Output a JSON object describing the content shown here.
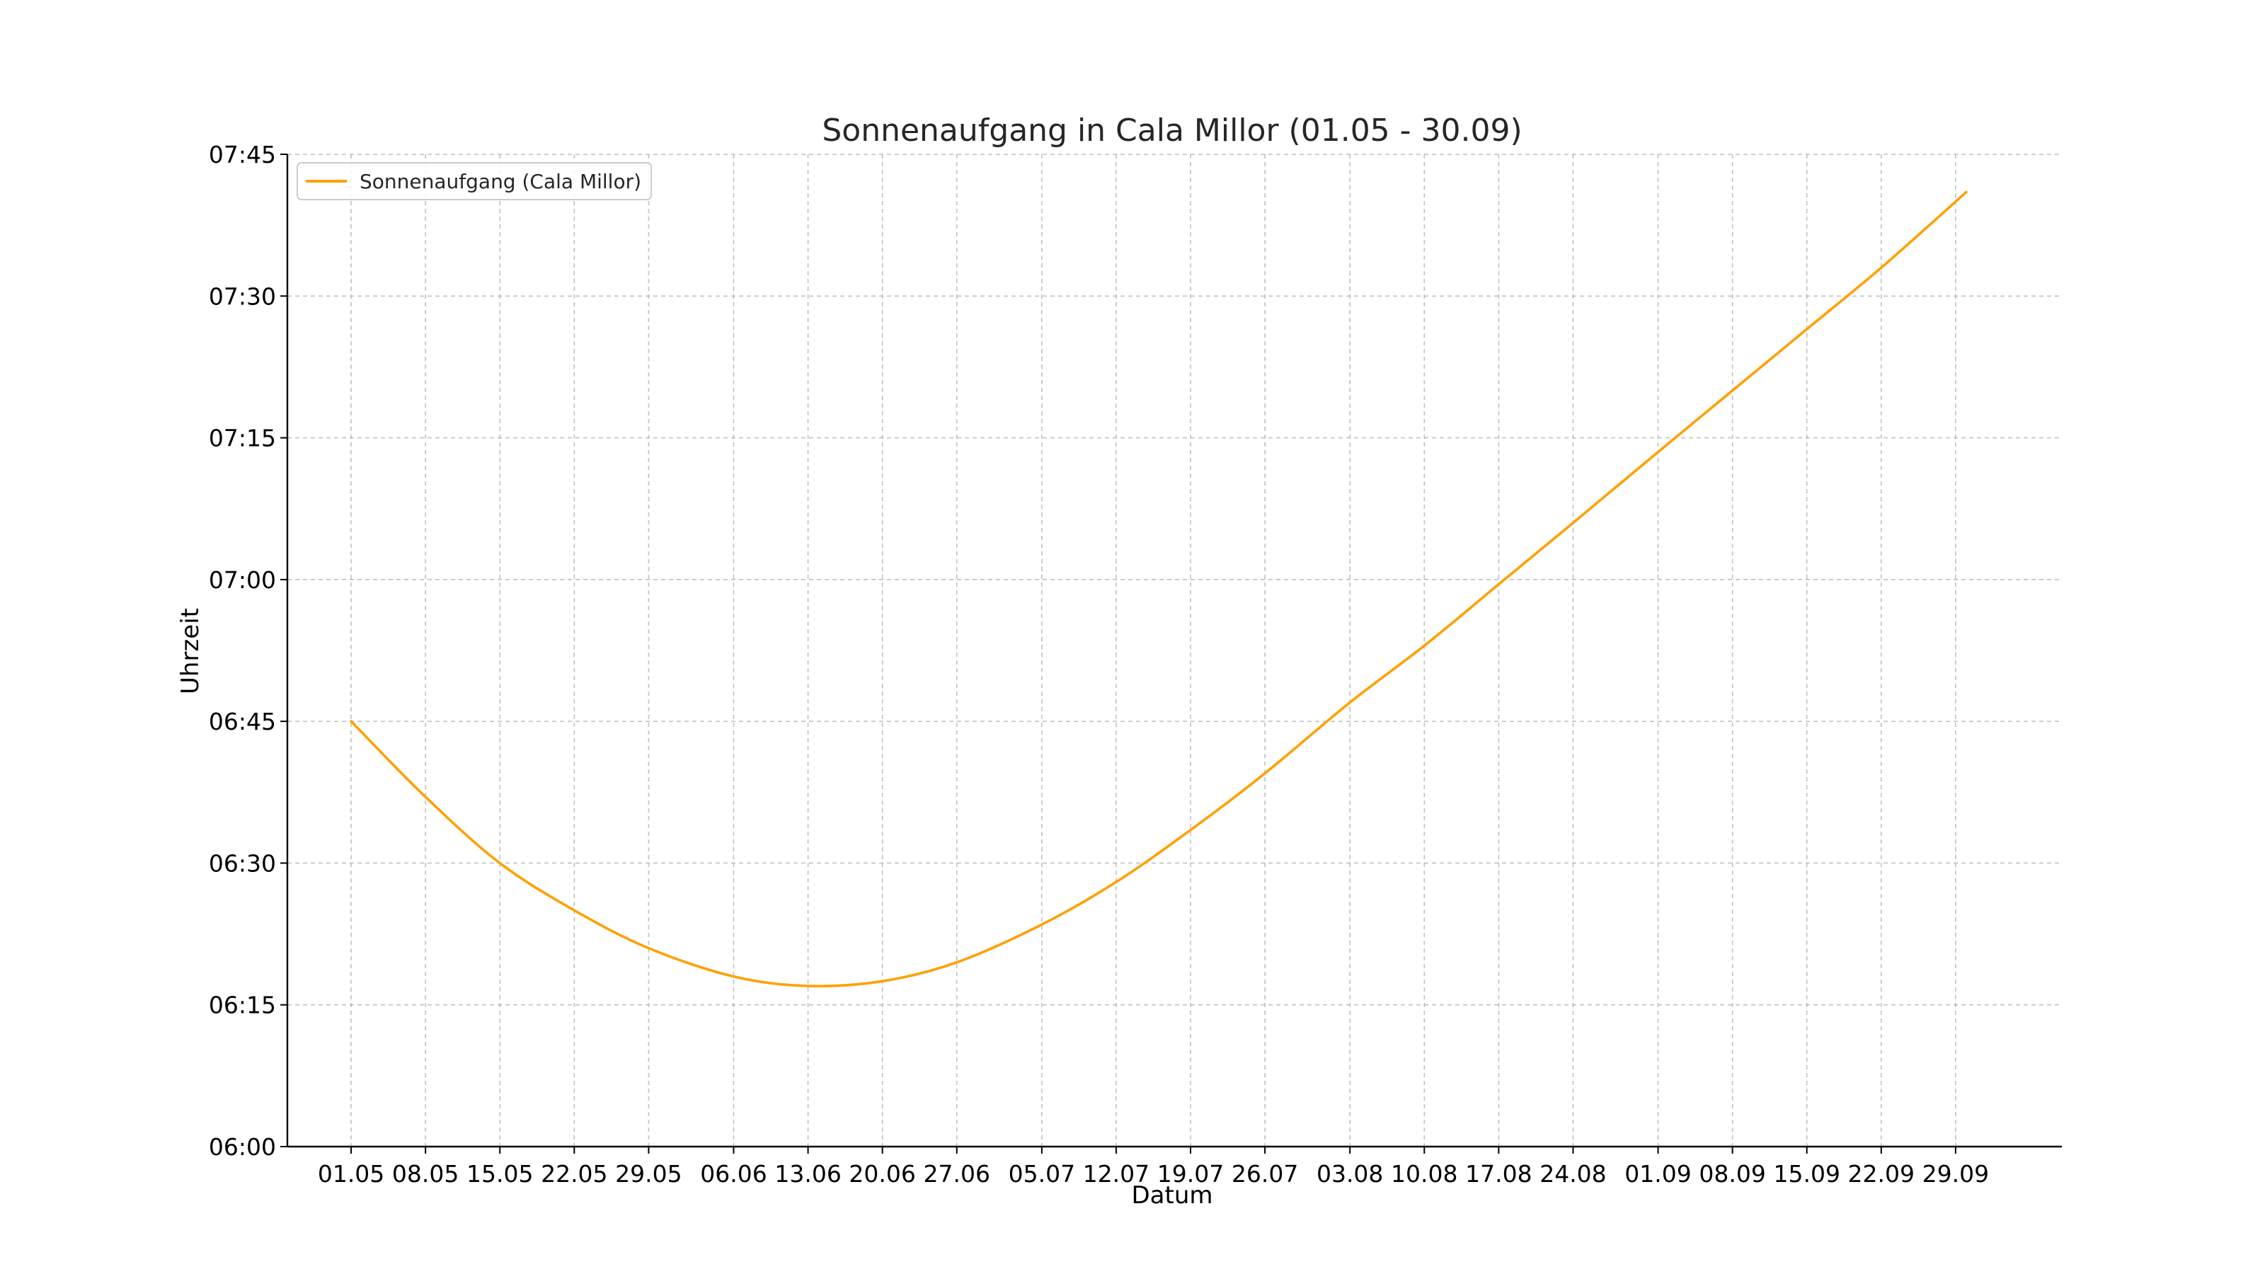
{
  "chart_data": {
    "type": "line",
    "title": "Sonnenaufgang in Cala Millor (01.05 - 30.09)",
    "xlabel": "Datum",
    "ylabel": "Uhrzeit",
    "x_tick_labels": [
      "01.05",
      "08.05",
      "15.05",
      "22.05",
      "29.05",
      "06.06",
      "13.06",
      "20.06",
      "27.06",
      "05.07",
      "12.07",
      "19.07",
      "26.07",
      "03.08",
      "10.08",
      "17.08",
      "24.08",
      "01.09",
      "08.09",
      "15.09",
      "22.09",
      "29.09"
    ],
    "y_tick_labels": [
      "06:00",
      "06:15",
      "06:30",
      "06:45",
      "07:00",
      "07:15",
      "07:30",
      "07:45"
    ],
    "ylim": [
      "06:00",
      "07:45"
    ],
    "xlim": [
      "2024-04-25",
      "2024-10-09"
    ],
    "grid": true,
    "legend_position": "top-left",
    "color": "#ffa000",
    "series": [
      {
        "name": "Sonnenaufgang (Cala Millor)",
        "x": [
          "2024-05-01",
          "2024-05-08",
          "2024-05-15",
          "2024-05-22",
          "2024-05-29",
          "2024-06-06",
          "2024-06-13",
          "2024-06-20",
          "2024-06-27",
          "2024-07-05",
          "2024-07-12",
          "2024-07-19",
          "2024-07-26",
          "2024-08-03",
          "2024-08-10",
          "2024-08-17",
          "2024-08-24",
          "2024-09-01",
          "2024-09-08",
          "2024-09-15",
          "2024-09-22",
          "2024-09-30"
        ],
        "y": [
          "06:45",
          "06:37",
          "06:30",
          "06:25",
          "06:21",
          "06:18",
          "06:17",
          "06:17.5",
          "06:19.5",
          "06:23.5",
          "06:28",
          "06:33.5",
          "06:39.5",
          "06:47",
          "06:53",
          "06:59.5",
          "07:06",
          "07:13.5",
          "07:20",
          "07:26.5",
          "07:33",
          "07:41"
        ]
      }
    ]
  }
}
